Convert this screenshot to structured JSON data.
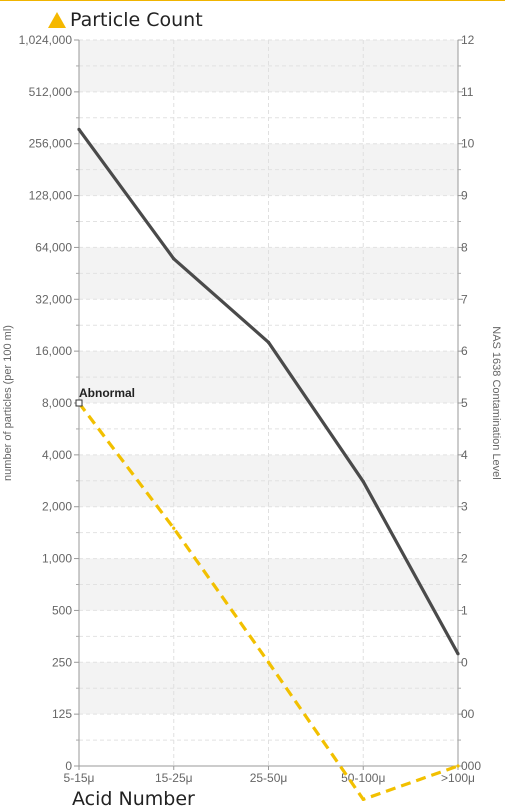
{
  "header": {
    "title": "Particle Count",
    "icon": "warning-triangle-icon",
    "accent_color": "#f5b800"
  },
  "footer": {
    "next_section": "Acid Number"
  },
  "chart_data": {
    "type": "line",
    "categories": [
      "5-15μ",
      "15-25μ",
      "25-50μ",
      "50-100μ",
      ">100μ"
    ],
    "y_left": {
      "label": "number of particles (per 100 ml)",
      "scale": "log",
      "ticks": [
        "0",
        "125",
        "250",
        "500",
        "1,000",
        "2,000",
        "4,000",
        "8,000",
        "16,000",
        "32,000",
        "64,000",
        "128,000",
        "256,000",
        "512,000",
        "1,024,000"
      ]
    },
    "y_right": {
      "label": "NAS 1638 Contamination Level",
      "ticks": [
        "000",
        "00",
        "0",
        "1",
        "2",
        "3",
        "4",
        "5",
        "6",
        "7",
        "8",
        "9",
        "10",
        "11",
        "12"
      ]
    },
    "series": [
      {
        "color": "#4a4a4a",
        "style": "solid",
        "values": [
          310000,
          55000,
          18000,
          2800,
          280
        ]
      },
      {
        "color": "#f2c000",
        "style": "dashed",
        "values": [
          8000,
          1500,
          250,
          40,
          0
        ]
      }
    ],
    "annotations": [
      {
        "text": "Abnormal",
        "x": "5-15μ",
        "y": 8000
      }
    ],
    "grid": true,
    "alternating_bands": true
  }
}
